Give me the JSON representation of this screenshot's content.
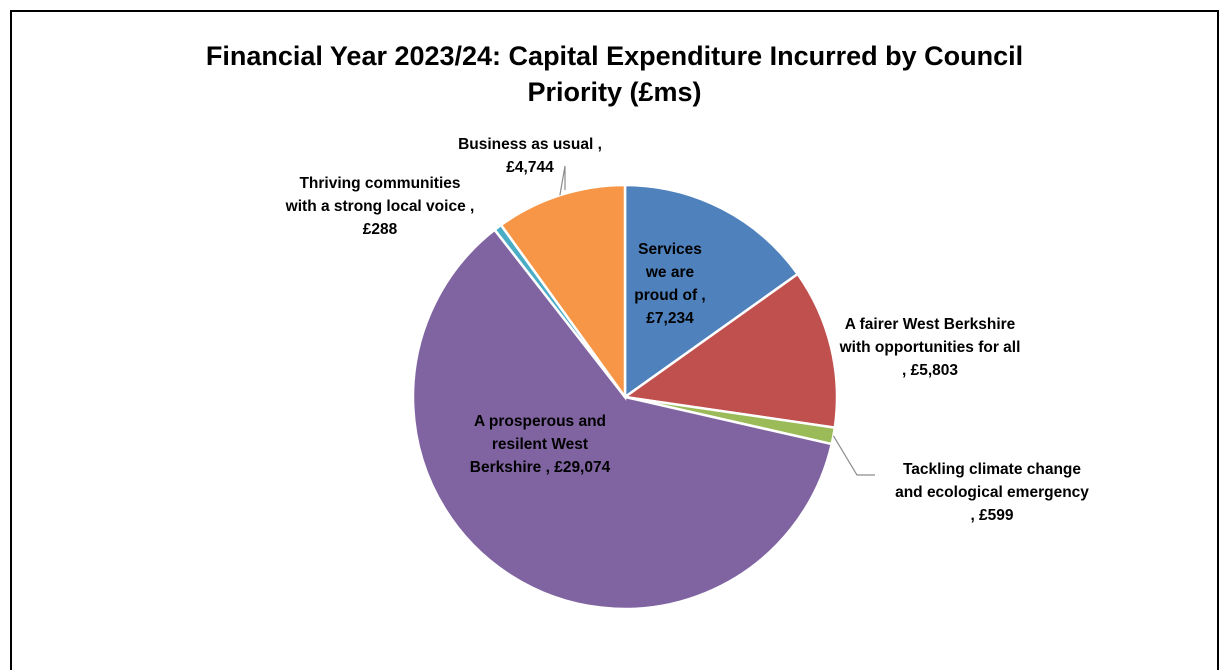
{
  "chart_data": {
    "type": "pie",
    "title_line1": "Financial Year 2023/24:  Capital Expenditure Incurred by Council",
    "title_line2": "Priority (£ms)",
    "slices": [
      {
        "name": "Services we are proud of",
        "value": 7234,
        "display": "£7,234",
        "color": "#4F81BD"
      },
      {
        "name": "A fairer West Berkshire with opportunities for all",
        "value": 5803,
        "display": "£5,803",
        "color": "#C0504D"
      },
      {
        "name": "Tackling climate change and ecological emergency",
        "value": 599,
        "display": "£599",
        "color": "#9BBB59"
      },
      {
        "name": "A prosperous and resilent West Berkshire",
        "value": 29074,
        "display": "£29,074",
        "color": "#8064A2"
      },
      {
        "name": "Thriving communities with a strong local voice",
        "value": 288,
        "display": "£288",
        "color": "#4BACC6"
      },
      {
        "name": "Business as usual",
        "value": 4744,
        "display": "£4,744",
        "color": "#F79646"
      }
    ],
    "labels": [
      [
        "Services",
        "we are",
        "proud of ,",
        "£7,234"
      ],
      [
        "A fairer West Berkshire",
        "with opportunities for all",
        ",  £5,803"
      ],
      [
        "Tackling climate change",
        "and ecological emergency",
        ",  £599"
      ],
      [
        "A prosperous and",
        "resilent West",
        "Berkshire ,  £29,074"
      ],
      [
        "Thriving communities",
        "with a strong local voice ,",
        "£288"
      ],
      [
        "Business as usual ,",
        "£4,744"
      ]
    ]
  }
}
